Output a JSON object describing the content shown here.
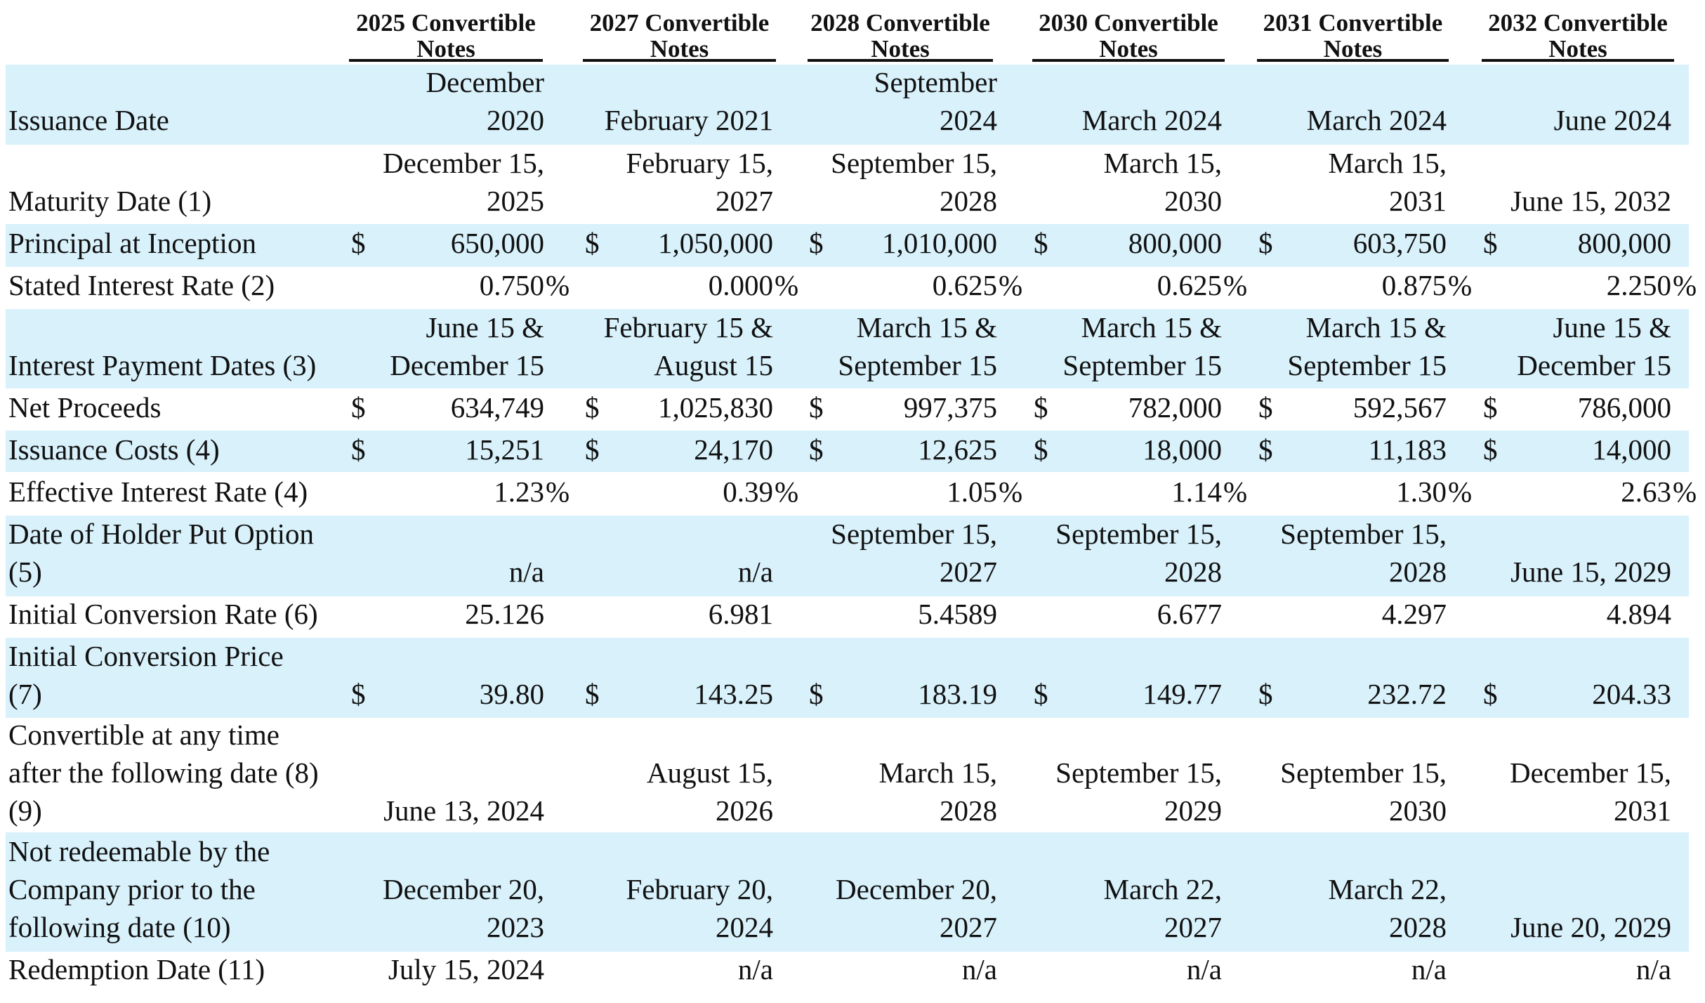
{
  "columns": [
    [
      "2025 Convertible",
      "Notes"
    ],
    [
      "2027 Convertible",
      "Notes"
    ],
    [
      "2028 Convertible",
      "Notes"
    ],
    [
      "2030 Convertible",
      "Notes"
    ],
    [
      "2031 Convertible",
      "Notes"
    ],
    [
      "2032 Convertible",
      "Notes"
    ]
  ],
  "rows": [
    {
      "key": "issuance-date",
      "label": [
        "Issuance Date"
      ],
      "values": [
        [
          "December",
          "2020"
        ],
        [
          "February 2021"
        ],
        [
          "September",
          "2024"
        ],
        [
          "March 2024"
        ],
        [
          "March 2024"
        ],
        [
          "June 2024"
        ]
      ]
    },
    {
      "key": "maturity-date",
      "label": [
        "Maturity Date (1)"
      ],
      "values": [
        [
          "December 15,",
          "2025"
        ],
        [
          "February 15,",
          "2027"
        ],
        [
          "September 15,",
          "2028"
        ],
        [
          "March 15,",
          "2030"
        ],
        [
          "March 15,",
          "2031"
        ],
        [
          "June 15, 2032"
        ]
      ]
    },
    {
      "key": "principal-at-inception",
      "label": [
        "Principal at Inception"
      ],
      "currency": "$",
      "values": [
        [
          "650,000"
        ],
        [
          "1,050,000"
        ],
        [
          "1,010,000"
        ],
        [
          "800,000"
        ],
        [
          "603,750"
        ],
        [
          "800,000"
        ]
      ]
    },
    {
      "key": "stated-interest-rate",
      "label": [
        "Stated Interest Rate (2)"
      ],
      "percent": "%",
      "values": [
        [
          "0.750"
        ],
        [
          "0.000"
        ],
        [
          "0.625"
        ],
        [
          "0.625"
        ],
        [
          "0.875"
        ],
        [
          "2.250"
        ]
      ]
    },
    {
      "key": "interest-payment-dates",
      "label": [
        "Interest Payment Dates (3)"
      ],
      "values": [
        [
          "June 15 &",
          "December 15"
        ],
        [
          "February 15 &",
          "August 15"
        ],
        [
          "March 15 &",
          "September 15"
        ],
        [
          "March 15 &",
          "September 15"
        ],
        [
          "March 15 &",
          "September 15"
        ],
        [
          "June 15 &",
          "December 15"
        ]
      ]
    },
    {
      "key": "net-proceeds",
      "label": [
        "Net Proceeds"
      ],
      "currency": "$",
      "values": [
        [
          "634,749"
        ],
        [
          "1,025,830"
        ],
        [
          "997,375"
        ],
        [
          "782,000"
        ],
        [
          "592,567"
        ],
        [
          "786,000"
        ]
      ]
    },
    {
      "key": "issuance-costs",
      "label": [
        "Issuance Costs (4)"
      ],
      "currency": "$",
      "values": [
        [
          "15,251"
        ],
        [
          "24,170"
        ],
        [
          "12,625"
        ],
        [
          "18,000"
        ],
        [
          "11,183"
        ],
        [
          "14,000"
        ]
      ]
    },
    {
      "key": "effective-interest-rate",
      "label": [
        "Effective Interest Rate (4)"
      ],
      "percent": "%",
      "values": [
        [
          "1.23"
        ],
        [
          "0.39"
        ],
        [
          "1.05"
        ],
        [
          "1.14"
        ],
        [
          "1.30"
        ],
        [
          "2.63"
        ]
      ]
    },
    {
      "key": "holder-put-option",
      "label": [
        "Date of Holder Put Option",
        "(5)"
      ],
      "values": [
        [
          "n/a"
        ],
        [
          "n/a"
        ],
        [
          "September 15,",
          "2027"
        ],
        [
          "September 15,",
          "2028"
        ],
        [
          "September 15,",
          "2028"
        ],
        [
          "June 15, 2029"
        ]
      ]
    },
    {
      "key": "initial-conversion-rate",
      "label": [
        "Initial Conversion Rate (6)"
      ],
      "values": [
        [
          "25.126"
        ],
        [
          "6.981"
        ],
        [
          "5.4589"
        ],
        [
          "6.677"
        ],
        [
          "4.297"
        ],
        [
          "4.894"
        ]
      ]
    },
    {
      "key": "initial-conversion-price",
      "label": [
        "Initial Conversion Price",
        "(7)"
      ],
      "currency": "$",
      "values": [
        [
          "39.80"
        ],
        [
          "143.25"
        ],
        [
          "183.19"
        ],
        [
          "149.77"
        ],
        [
          "232.72"
        ],
        [
          "204.33"
        ]
      ]
    },
    {
      "key": "convertible-after-date",
      "label": [
        "Convertible at any time",
        "after the following date (8)",
        "(9)"
      ],
      "values": [
        [
          "June 13, 2024"
        ],
        [
          "August 15,",
          "2026"
        ],
        [
          "March 15,",
          "2028"
        ],
        [
          "September 15,",
          "2029"
        ],
        [
          "September 15,",
          "2030"
        ],
        [
          "December 15,",
          "2031"
        ]
      ]
    },
    {
      "key": "not-redeemable-prior",
      "label": [
        "Not redeemable by the",
        "Company prior to the",
        "following date (10)"
      ],
      "values": [
        [
          "December 20,",
          "2023"
        ],
        [
          "February 20,",
          "2024"
        ],
        [
          "December 20,",
          "2027"
        ],
        [
          "March 22,",
          "2027"
        ],
        [
          "March 22,",
          "2028"
        ],
        [
          "June 20, 2029"
        ]
      ]
    },
    {
      "key": "redemption-date",
      "label": [
        "Redemption Date (11)"
      ],
      "values": [
        [
          "July 15, 2024"
        ],
        [
          "n/a"
        ],
        [
          "n/a"
        ],
        [
          "n/a"
        ],
        [
          "n/a"
        ],
        [
          "n/a"
        ]
      ]
    }
  ],
  "colors": {
    "band": "#d8f1fb",
    "text": "#111111",
    "rule": "#111111"
  }
}
